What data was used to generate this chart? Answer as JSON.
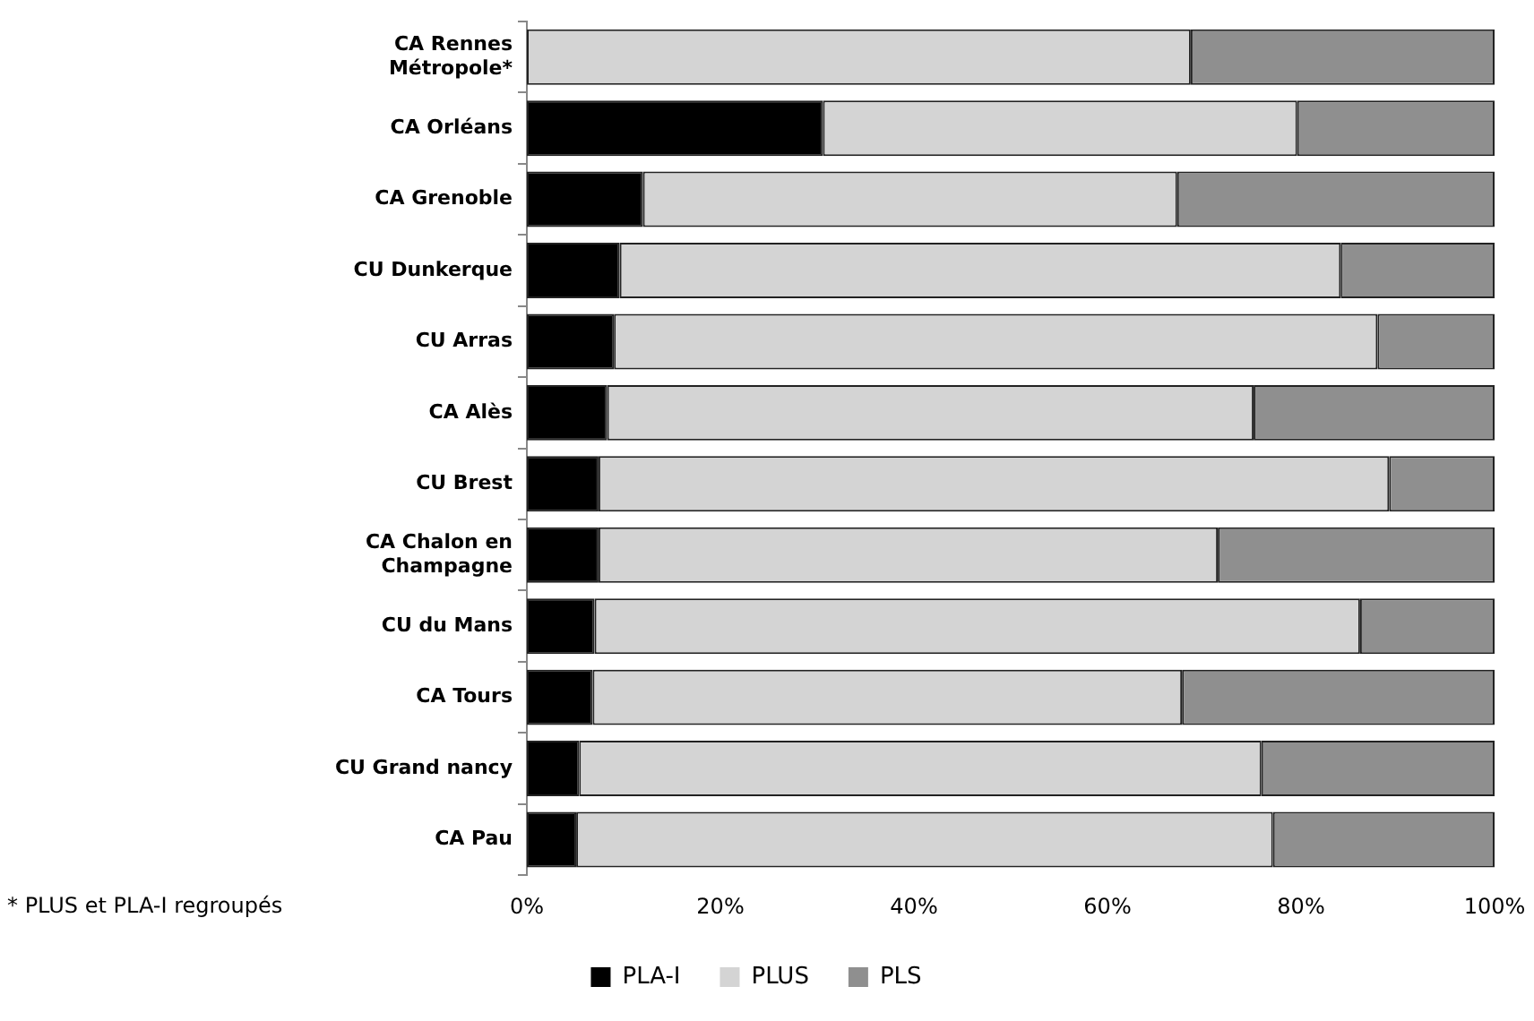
{
  "chart_data": {
    "type": "bar",
    "orientation": "horizontal",
    "stacked": true,
    "categories": [
      "CA Rennes Métropole*",
      "CA Orléans",
      "CA Grenoble",
      "CU Dunkerque",
      "CU Arras",
      "CA Alès",
      "CU Brest",
      "CA Chalon en Champagne",
      "CU du Mans",
      "CA Tours",
      "CU Grand nancy",
      "CA Pau"
    ],
    "series": [
      {
        "name": "PLA-I",
        "color": "#000000",
        "values": [
          0,
          30.6,
          12.0,
          9.6,
          9.0,
          8.3,
          7.4,
          7.4,
          7.0,
          6.8,
          5.4,
          5.1
        ]
      },
      {
        "name": "PLUS",
        "color": "#d4d4d4",
        "values": [
          68.6,
          49.0,
          55.2,
          74.5,
          78.9,
          66.8,
          81.7,
          64.0,
          79.1,
          60.9,
          70.5,
          72.0
        ]
      },
      {
        "name": "PLS",
        "color": "#8f8f8f",
        "values": [
          31.4,
          20.4,
          32.8,
          15.9,
          12.1,
          24.9,
          10.9,
          28.6,
          13.9,
          32.3,
          24.1,
          22.9
        ]
      }
    ],
    "xlim": [
      0,
      100
    ],
    "xticks": [
      {
        "value": 0,
        "label": "0%"
      },
      {
        "value": 20,
        "label": "20%"
      },
      {
        "value": 40,
        "label": "40%"
      },
      {
        "value": 60,
        "label": "60%"
      },
      {
        "value": 80,
        "label": "80%"
      },
      {
        "value": 100,
        "label": "100%"
      }
    ],
    "grid": false,
    "legend": "bottom",
    "annotations": [
      "* PLUS et PLA-I regroupés"
    ]
  }
}
